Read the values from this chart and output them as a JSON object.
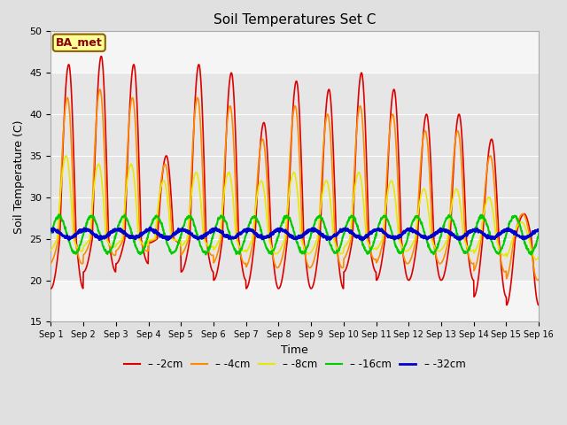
{
  "title": "Soil Temperatures Set C",
  "xlabel": "Time",
  "ylabel": "Soil Temperature (C)",
  "ylim": [
    15,
    50
  ],
  "xlim": [
    0,
    15
  ],
  "xtick_labels": [
    "Sep 1",
    "Sep 2",
    "Sep 3",
    "Sep 4",
    "Sep 5",
    "Sep 6",
    "Sep 7",
    "Sep 8",
    "Sep 9",
    "Sep 10",
    "Sep 11",
    "Sep 12",
    "Sep 13",
    "Sep 14",
    "Sep 15",
    "Sep 16"
  ],
  "annotation_text": "BA_met",
  "annotation_color": "#8B0000",
  "annotation_bg": "#FFFF99",
  "annotation_border": "#8B6000",
  "series": {
    "-2cm": {
      "color": "#dd0000",
      "lw": 1.2
    },
    "-4cm": {
      "color": "#ff8c00",
      "lw": 1.2
    },
    "-8cm": {
      "color": "#e8e800",
      "lw": 1.2
    },
    "-16cm": {
      "color": "#00cc00",
      "lw": 1.5
    },
    "-32cm": {
      "color": "#0000cc",
      "lw": 2.0
    }
  }
}
